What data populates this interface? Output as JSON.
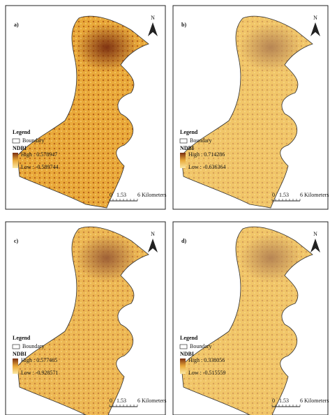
{
  "north": "N",
  "panels": [
    {
      "label": "a)",
      "legend": {
        "title": "Legend",
        "boundary": "Boundary",
        "index": "NDBI",
        "high": "High : 0.578947",
        "low": "Low : -0.589744"
      },
      "scale": [
        "0",
        "1.5",
        "3",
        "6 Kilometers"
      ]
    },
    {
      "label": "b)",
      "legend": {
        "title": "Legend",
        "boundary": "Boundary",
        "index": "NDBI",
        "high": "High : 0.714286",
        "low": "Low : -0.636364"
      },
      "scale": [
        "0",
        "1.5",
        "3",
        "6 Kilometers"
      ]
    },
    {
      "label": "c)",
      "legend": {
        "title": "Legend",
        "boundary": "Boundary",
        "index": "NDBI",
        "high": "High : 0.577465",
        "low": "Low : -0.928571"
      },
      "scale": [
        "0",
        "1.5",
        "3",
        "6 Kilometers"
      ]
    },
    {
      "label": "d)",
      "legend": {
        "title": "Legend",
        "boundary": "Boundary",
        "index": "NDBI",
        "high": "High : 0.338056",
        "low": "Low : -0.515559"
      },
      "scale": [
        "0",
        "1.5",
        "3",
        "6 Kilometers"
      ]
    }
  ]
}
